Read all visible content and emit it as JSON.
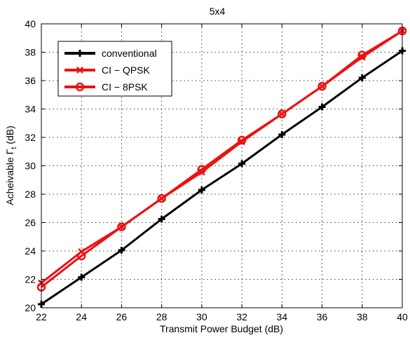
{
  "chart_data": {
    "type": "line",
    "title": "5x4",
    "xlabel": "Transmit Power Budget (dB)",
    "ylabel_main": "Acheivable  Γ",
    "ylabel_sub": "t",
    "ylabel_unit": " (dB)",
    "xlim": [
      22,
      40
    ],
    "ylim": [
      20,
      40
    ],
    "xticks": [
      22,
      24,
      26,
      28,
      30,
      32,
      34,
      36,
      38,
      40
    ],
    "yticks": [
      20,
      22,
      24,
      26,
      28,
      30,
      32,
      34,
      36,
      38,
      40
    ],
    "grid": true,
    "legend_position": "top-left",
    "x": [
      22,
      24,
      26,
      28,
      30,
      32,
      34,
      36,
      38,
      40
    ],
    "series": [
      {
        "name": "conventional",
        "color": "#000000",
        "marker": "plus",
        "values": [
          20.25,
          22.15,
          24.05,
          26.25,
          28.3,
          30.15,
          32.2,
          34.15,
          36.2,
          38.1
        ]
      },
      {
        "name": "CI − QPSK",
        "color": "#ee1111",
        "marker": "x",
        "values": [
          21.75,
          23.95,
          25.7,
          27.7,
          29.55,
          31.7,
          33.65,
          35.6,
          37.65,
          39.5
        ]
      },
      {
        "name": "CI − 8PSK",
        "color": "#ee1111",
        "marker": "circle",
        "values": [
          21.45,
          23.65,
          25.7,
          27.7,
          29.75,
          31.8,
          33.65,
          35.6,
          37.8,
          39.5
        ]
      }
    ]
  }
}
